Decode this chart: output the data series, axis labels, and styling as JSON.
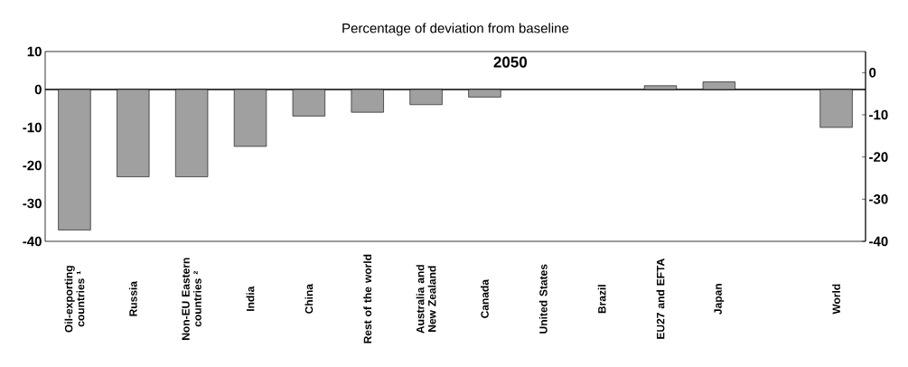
{
  "chart_data": {
    "type": "bar",
    "title": "Percentage of deviation from baseline",
    "annotations": [
      "2050"
    ],
    "categories": [
      "Oil-exporting countries ¹",
      "Russia",
      "Non-EU Eastern countries ²",
      "India",
      "China",
      "Rest of the world",
      "Australia and New Zealand",
      "Canada",
      "United States",
      "Brazil",
      "EU27 and EFTA",
      "Japan",
      null,
      "World"
    ],
    "values": [
      -37,
      -23,
      -23,
      -15,
      -7,
      -6,
      -4,
      -2,
      null,
      null,
      1,
      2,
      null,
      -10
    ],
    "color": "#a0a0a0",
    "ylim": [
      -40,
      10
    ],
    "yticks": [
      -40,
      -30,
      -20,
      -10,
      0,
      10
    ],
    "y2lim": [
      -40,
      5
    ],
    "y2ticks": [
      -40,
      -30,
      -20,
      -10,
      0
    ],
    "ref_lines": [
      {
        "axis": "y",
        "value": 0,
        "color": "#000000"
      }
    ],
    "grid": false
  }
}
